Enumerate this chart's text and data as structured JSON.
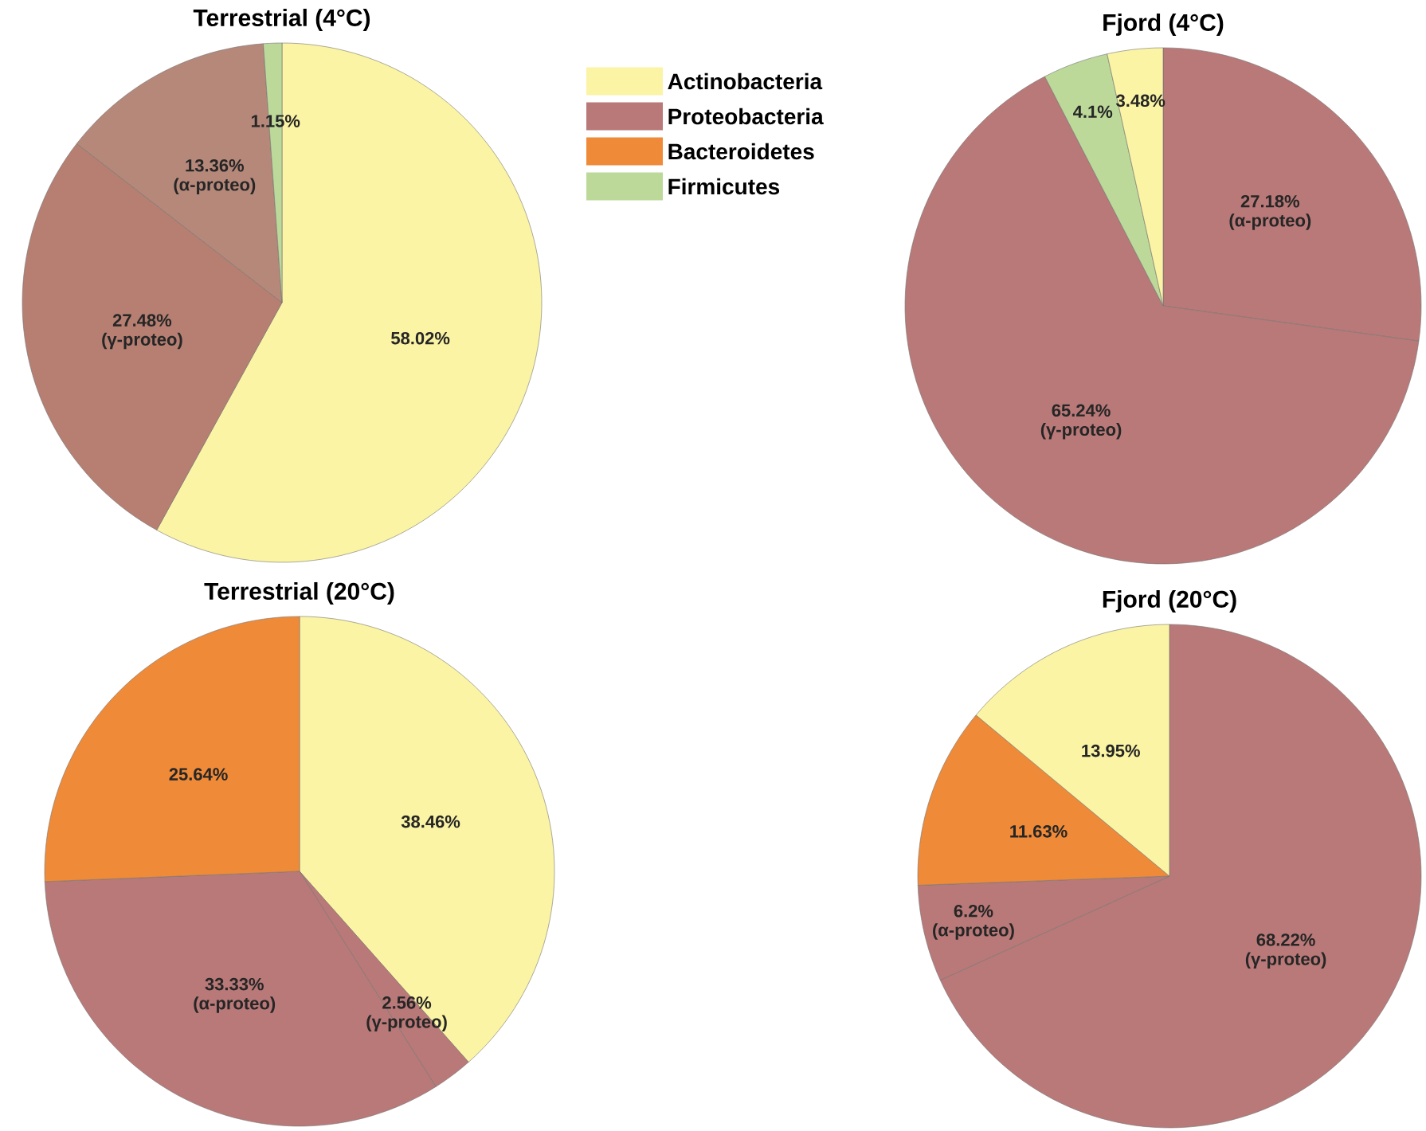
{
  "chart_data": [
    {
      "type": "pie",
      "title": "Terrestrial (4°C)",
      "categories": [
        null,
        "(γ-proteo)",
        "(α-proteo)",
        null
      ],
      "values": [
        58.02,
        27.48,
        13.36,
        1.15
      ],
      "value_labels": [
        "58.02%",
        "27.48%",
        "13.36%",
        "1.15%"
      ],
      "colors": [
        "#fbf4a4",
        "#b67f72",
        "#b5887a",
        "#bcd99a"
      ]
    },
    {
      "type": "other",
      "categories": [
        "Actinobacteria",
        "Proteobacteria",
        "Bacteroidetes",
        "Firmicutes"
      ],
      "colors": [
        "#fbf4a4",
        "#b97978",
        "#ef8a38",
        "#bcd99a"
      ]
    },
    {
      "type": "pie",
      "title": "Fjord (4°C)",
      "categories": [
        "(α-proteo)",
        "(γ-proteo)",
        null,
        null
      ],
      "values": [
        27.18,
        65.24,
        4.1,
        3.48
      ],
      "value_labels": [
        "27.18%",
        "65.24%",
        "4.1%",
        "3.48%"
      ],
      "colors": [
        "#b97978",
        "#b97978",
        "#bcd99a",
        "#fbf4a4"
      ]
    },
    {
      "type": "pie",
      "title": "Terrestrial (20°C)",
      "categories": [
        null,
        "(γ-proteo)",
        "(α-proteo)",
        null
      ],
      "values": [
        38.46,
        2.56,
        33.33,
        25.64
      ],
      "value_labels": [
        "38.46%",
        "2.56%",
        "33.33%",
        "25.64%"
      ],
      "colors": [
        "#fbf4a4",
        "#b97978",
        "#b97978",
        "#ef8a38"
      ]
    },
    {
      "type": "pie",
      "title": "Fjord (20°C)",
      "categories": [
        "(γ-proteo)",
        "(α-proteo)",
        null,
        null
      ],
      "values": [
        68.22,
        6.2,
        11.63,
        13.95
      ],
      "value_labels": [
        "68.22%",
        "6.2%",
        "11.63%",
        "13.95%"
      ],
      "colors": [
        "#b97978",
        "#b97978",
        "#ef8a38",
        "#fbf4a4"
      ]
    }
  ]
}
